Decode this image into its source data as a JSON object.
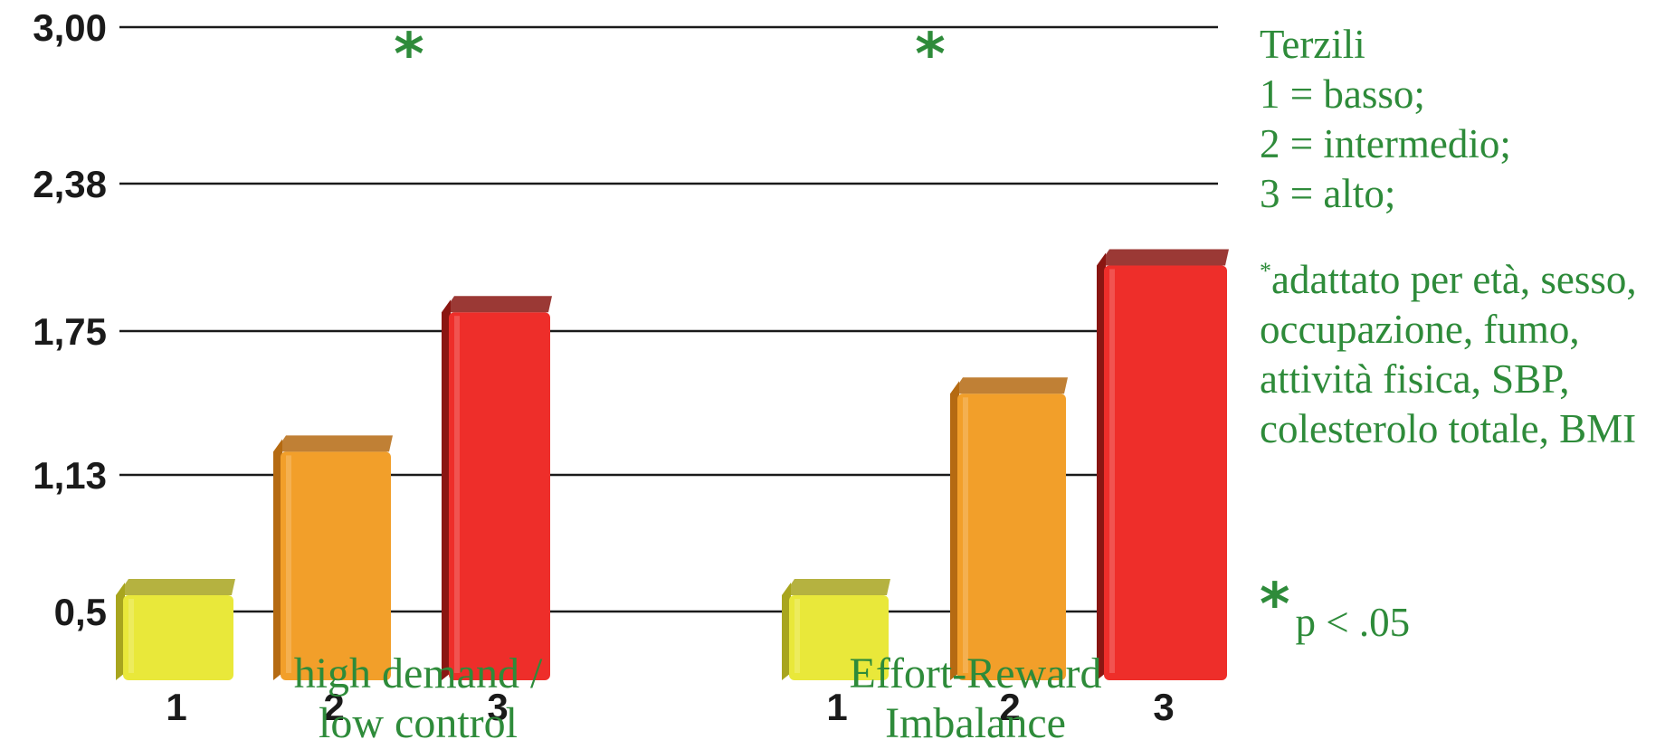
{
  "chart_data": {
    "type": "bar",
    "y_ticks": [
      "3,00",
      "2,38",
      "1,75",
      "1,13",
      "0,5"
    ],
    "y_tick_values": [
      3.0,
      2.38,
      1.75,
      1.13,
      0.5
    ],
    "ylim": [
      0,
      3.0
    ],
    "groups": [
      {
        "label_lines": [
          "high demand /",
          "low control"
        ],
        "categories": [
          "1",
          "2",
          "3"
        ],
        "values": [
          0.65,
          1.3,
          1.9
        ],
        "significance": "*"
      },
      {
        "label_lines": [
          "Effort-Reward",
          "Imbalance"
        ],
        "categories": [
          "1",
          "2",
          "3"
        ],
        "values": [
          0.65,
          1.55,
          2.1
        ],
        "significance": "*"
      }
    ],
    "bar_colors": [
      "#e9e83a",
      "#f29f2a",
      "#ee2e2a"
    ],
    "bar_shade_colors": [
      "#a8a51e",
      "#b56a12",
      "#8a1612"
    ],
    "star_color": "#2e8b3a",
    "grid": true
  },
  "legend": {
    "lines": [
      "Terzili",
      "1 = basso;",
      "2 = intermedio;",
      "3 = alto;"
    ],
    "note_marker": "*",
    "note_lines": [
      "adattato per età, sesso,",
      "occupazione, fumo,",
      "attività fisica, SBP,",
      "colesterolo totale, BMI"
    ],
    "significance_marker": "*",
    "significance_text": "p < .05"
  }
}
